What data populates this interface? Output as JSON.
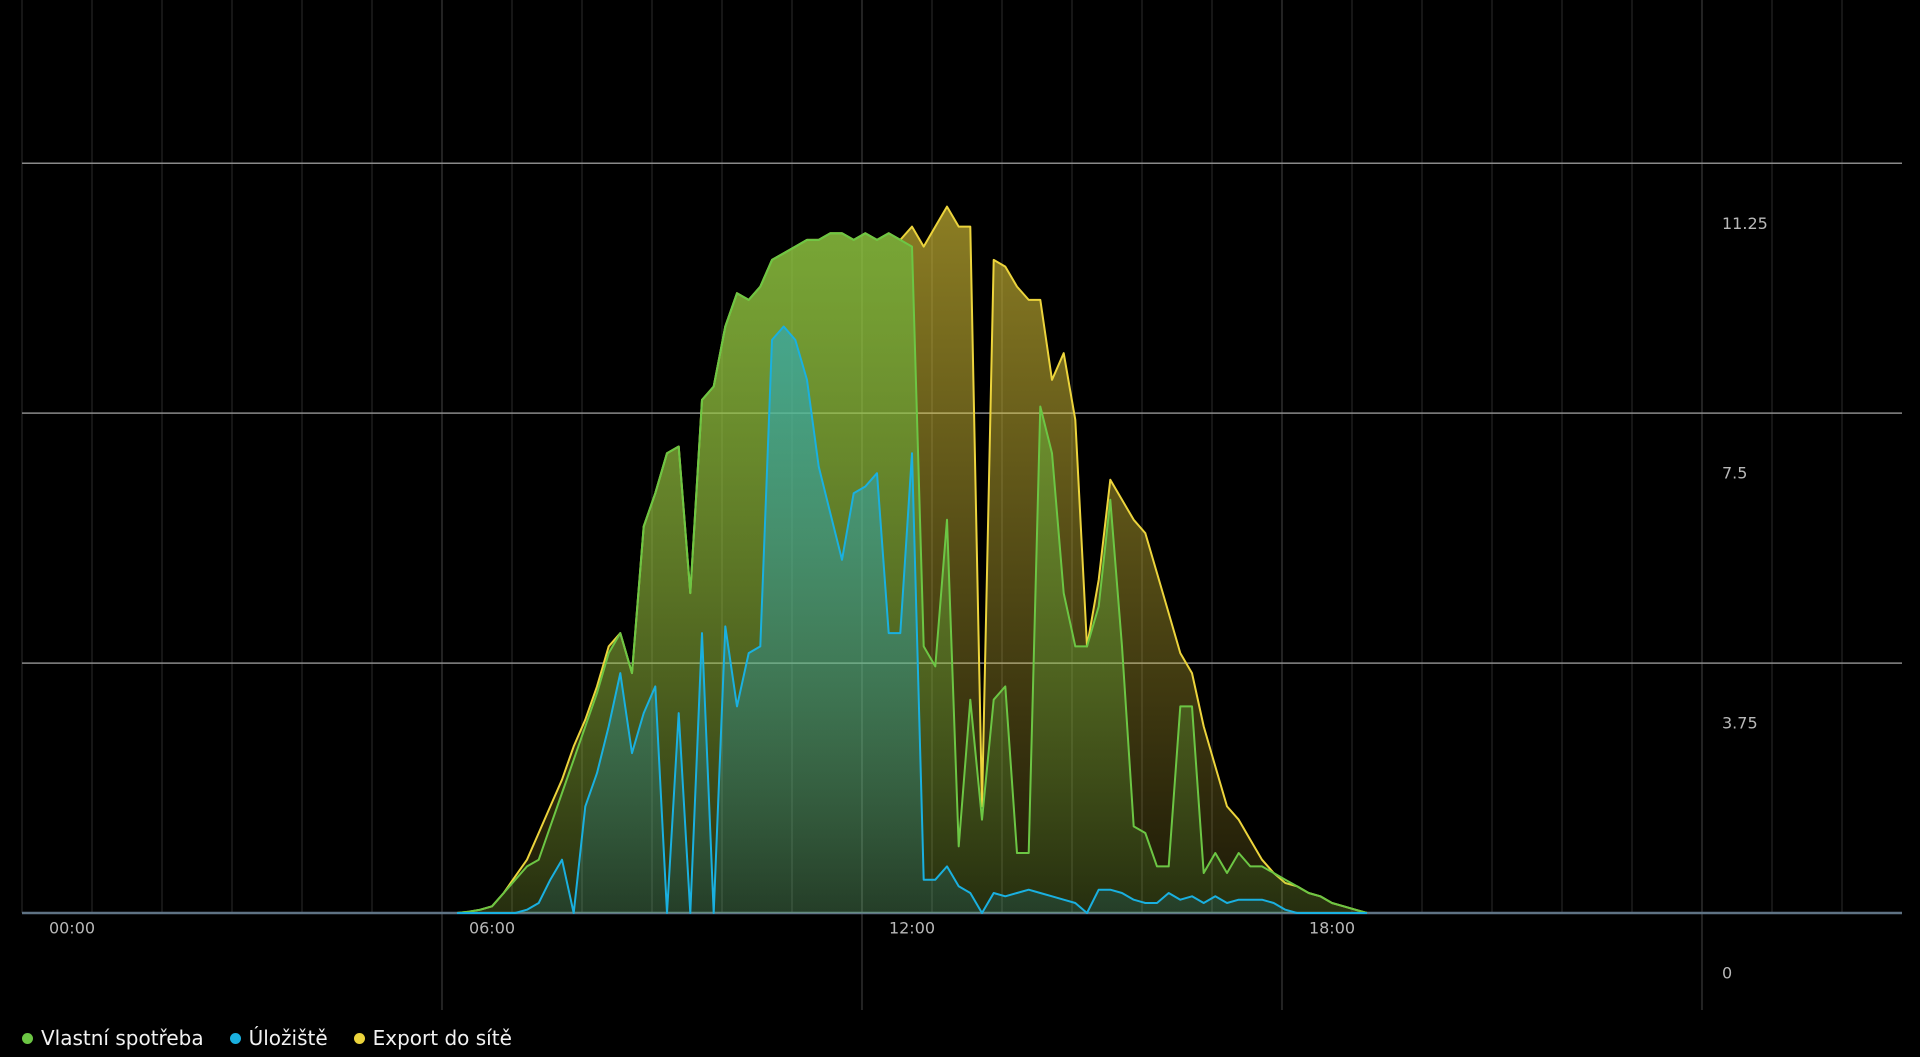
{
  "chart_data": {
    "type": "area",
    "x": [
      "05:30",
      "05:40",
      "05:50",
      "06:00",
      "06:10",
      "06:20",
      "06:30",
      "06:40",
      "06:50",
      "07:00",
      "07:10",
      "07:20",
      "07:30",
      "07:40",
      "07:50",
      "08:00",
      "08:10",
      "08:20",
      "08:30",
      "08:40",
      "08:50",
      "09:00",
      "09:10",
      "09:20",
      "09:30",
      "09:40",
      "09:50",
      "10:00",
      "10:10",
      "10:20",
      "10:30",
      "10:40",
      "10:50",
      "11:00",
      "11:10",
      "11:20",
      "11:30",
      "11:40",
      "11:50",
      "12:00",
      "12:10",
      "12:20",
      "12:30",
      "12:40",
      "12:50",
      "13:00",
      "13:10",
      "13:20",
      "13:30",
      "13:40",
      "13:50",
      "14:00",
      "14:10",
      "14:20",
      "14:30",
      "14:40",
      "14:50",
      "15:00",
      "15:10",
      "15:20",
      "15:30",
      "15:40",
      "15:50",
      "16:00",
      "16:10",
      "16:20",
      "16:30",
      "16:40",
      "16:50",
      "17:00",
      "17:10",
      "17:20",
      "17:30",
      "17:40",
      "17:50",
      "18:00",
      "18:10",
      "18:20",
      "18:30"
    ],
    "series": [
      {
        "name": "Vlastní spotřeba",
        "color": "#6cc644",
        "values": [
          0,
          0.02,
          0.05,
          0.1,
          0.3,
          0.5,
          0.7,
          0.8,
          1.3,
          1.8,
          2.3,
          2.8,
          3.3,
          3.9,
          4.2,
          3.6,
          5.8,
          6.3,
          6.9,
          7.0,
          4.8,
          7.7,
          7.9,
          8.8,
          9.3,
          9.2,
          9.4,
          9.8,
          9.9,
          10.0,
          10.1,
          10.1,
          10.2,
          10.2,
          10.1,
          10.2,
          10.1,
          10.2,
          10.1,
          10.0,
          4.0,
          3.7,
          5.9,
          1.0,
          3.2,
          1.4,
          3.2,
          3.4,
          0.9,
          0.9,
          7.6,
          6.9,
          4.8,
          4.0,
          4.0,
          4.6,
          6.2,
          4.0,
          1.3,
          1.2,
          0.7,
          0.7,
          3.1,
          3.1,
          0.6,
          0.9,
          0.6,
          0.9,
          0.7,
          0.7,
          0.6,
          0.5,
          0.4,
          0.3,
          0.25,
          0.15,
          0.1,
          0.05,
          0
        ]
      },
      {
        "name": "Úložiště",
        "color": "#1ab0e0",
        "values": [
          0,
          0,
          0,
          0,
          0,
          0,
          0.05,
          0.15,
          0.5,
          0.8,
          0,
          1.6,
          2.1,
          2.8,
          3.6,
          2.4,
          3.0,
          3.4,
          0,
          3.0,
          0,
          4.2,
          0,
          4.3,
          3.1,
          3.9,
          4.0,
          8.6,
          8.8,
          8.6,
          8.0,
          6.7,
          6.0,
          5.3,
          6.3,
          6.4,
          6.6,
          4.2,
          4.2,
          6.9,
          0.5,
          0.5,
          0.7,
          0.4,
          0.3,
          0,
          0.3,
          0.25,
          0.3,
          0.35,
          0.3,
          0.25,
          0.2,
          0.15,
          0,
          0.35,
          0.35,
          0.3,
          0.2,
          0.15,
          0.15,
          0.3,
          0.2,
          0.25,
          0.15,
          0.25,
          0.15,
          0.2,
          0.2,
          0.2,
          0.15,
          0.05,
          0,
          0,
          0,
          0,
          0,
          0,
          0
        ]
      },
      {
        "name": "Export do sítě",
        "color": "#ecd43c",
        "values": [
          0,
          0.02,
          0.05,
          0.1,
          0.3,
          0.55,
          0.8,
          1.2,
          1.6,
          2.0,
          2.5,
          2.9,
          3.4,
          4.0,
          4.2,
          3.6,
          5.8,
          6.3,
          6.9,
          7.0,
          4.8,
          7.7,
          7.9,
          8.8,
          9.3,
          9.2,
          9.4,
          9.8,
          9.9,
          10.0,
          10.1,
          10.1,
          10.2,
          10.2,
          10.1,
          10.2,
          10.1,
          10.2,
          10.1,
          10.3,
          10.0,
          10.3,
          10.6,
          10.3,
          10.3,
          1.6,
          9.8,
          9.7,
          9.4,
          9.2,
          9.2,
          8.0,
          8.4,
          7.4,
          4.0,
          5.0,
          6.5,
          6.2,
          5.9,
          5.7,
          5.1,
          4.5,
          3.9,
          3.6,
          2.8,
          2.2,
          1.6,
          1.4,
          1.1,
          0.8,
          0.6,
          0.45,
          0.4,
          0.3,
          0.25,
          0.15,
          0.1,
          0.05,
          0
        ]
      }
    ],
    "xticks": [
      "00:00",
      "06:00",
      "12:00",
      "18:00"
    ],
    "ylim": [
      0,
      13.7
    ],
    "yticks": [
      0,
      3.75,
      7.5,
      11.25
    ],
    "grid": true
  }
}
